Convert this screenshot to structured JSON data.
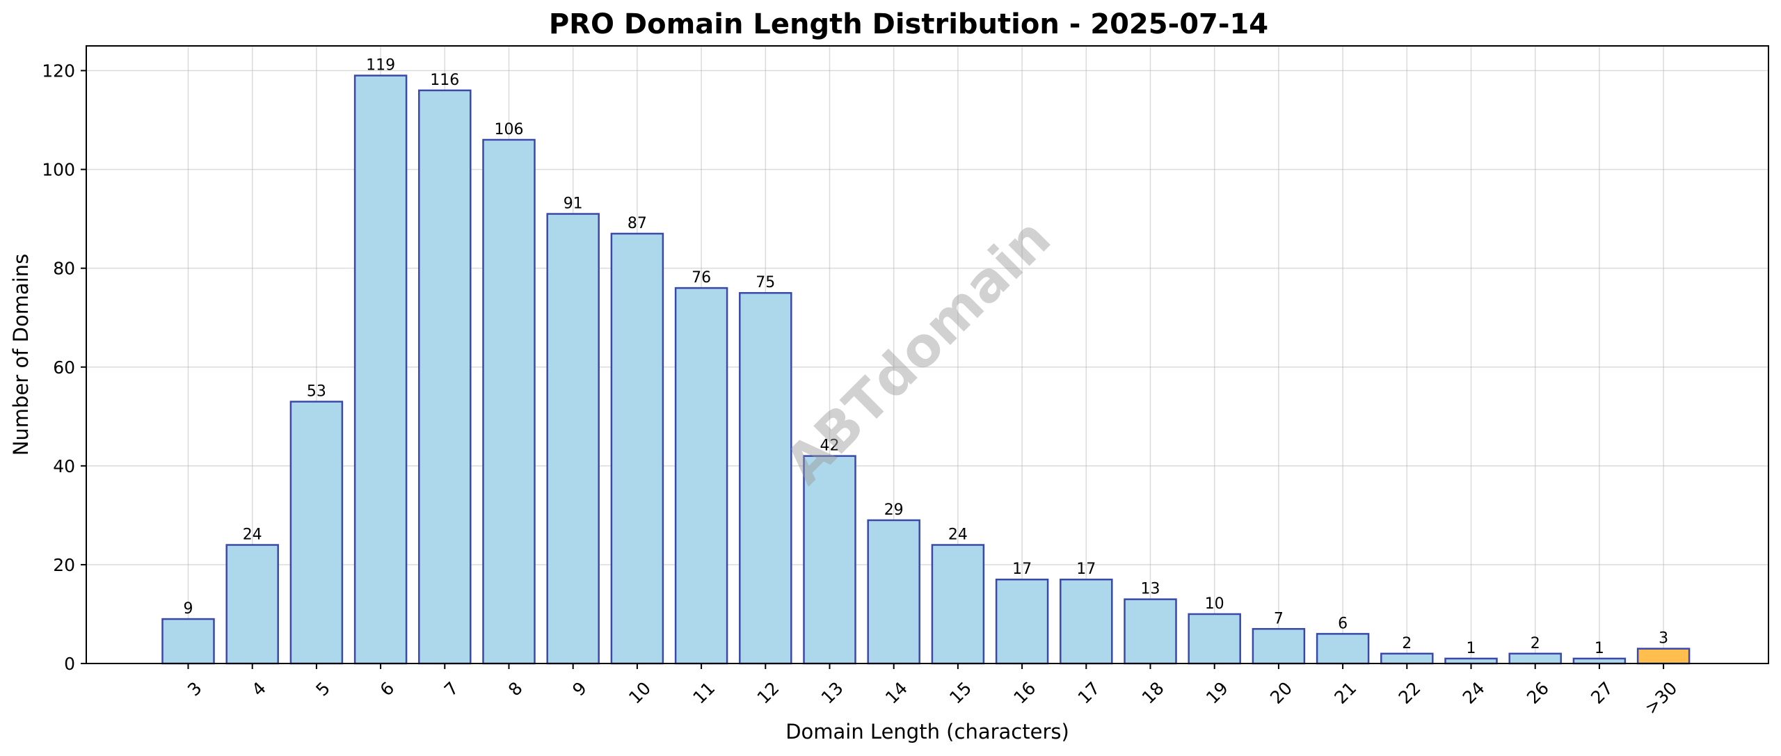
{
  "chart_data": {
    "type": "bar",
    "title": "PRO Domain Length Distribution - 2025-07-14",
    "xlabel": "Domain Length (characters)",
    "ylabel": "Number of Domains",
    "categories": [
      "3",
      "4",
      "5",
      "6",
      "7",
      "8",
      "9",
      "10",
      "11",
      "12",
      "13",
      "14",
      "15",
      "16",
      "17",
      "18",
      "19",
      "20",
      "21",
      "22",
      "24",
      "26",
      "27",
      ">30"
    ],
    "values": [
      9,
      24,
      53,
      119,
      116,
      106,
      91,
      87,
      76,
      75,
      42,
      29,
      24,
      17,
      17,
      13,
      10,
      7,
      6,
      2,
      1,
      2,
      1,
      3
    ],
    "ylim": [
      0,
      125
    ],
    "yticks": [
      0,
      20,
      40,
      60,
      80,
      100,
      120
    ],
    "grid": true,
    "data_labels": true,
    "xtick_rotation": 45,
    "colors": {
      "bar_fill": "#add8ec",
      "bar_edge": "#3a49a8",
      "highlight_fill": "#ffbe4d",
      "highlight_category": ">30"
    },
    "watermark": "ABTdomain"
  }
}
